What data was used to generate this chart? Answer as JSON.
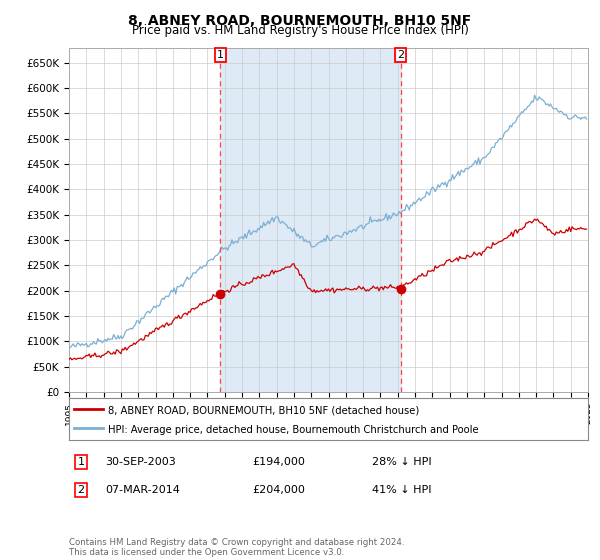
{
  "title": "8, ABNEY ROAD, BOURNEMOUTH, BH10 5NF",
  "subtitle": "Price paid vs. HM Land Registry's House Price Index (HPI)",
  "legend_line1": "8, ABNEY ROAD, BOURNEMOUTH, BH10 5NF (detached house)",
  "legend_line2": "HPI: Average price, detached house, Bournemouth Christchurch and Poole",
  "annotation1_label": "1",
  "annotation1_date": "30-SEP-2003",
  "annotation1_price": "£194,000",
  "annotation1_hpi": "28% ↓ HPI",
  "annotation2_label": "2",
  "annotation2_date": "07-MAR-2014",
  "annotation2_price": "£204,000",
  "annotation2_hpi": "41% ↓ HPI",
  "footer": "Contains HM Land Registry data © Crown copyright and database right 2024.\nThis data is licensed under the Open Government Licence v3.0.",
  "hpi_color": "#7bafd4",
  "price_color": "#cc0000",
  "marker_color": "#cc0000",
  "vline_color": "#ff4444",
  "shade_color": "#deeaf5",
  "bg_color": "#ffffff",
  "grid_color": "#cccccc",
  "ylim": [
    0,
    680000
  ],
  "yticks": [
    0,
    50000,
    100000,
    150000,
    200000,
    250000,
    300000,
    350000,
    400000,
    450000,
    500000,
    550000,
    600000,
    650000
  ],
  "year_start": 1995,
  "year_end": 2025,
  "sale1_year": 2003.75,
  "sale2_year": 2014.17,
  "price_at_sale1": 194000,
  "price_at_sale2": 204000
}
